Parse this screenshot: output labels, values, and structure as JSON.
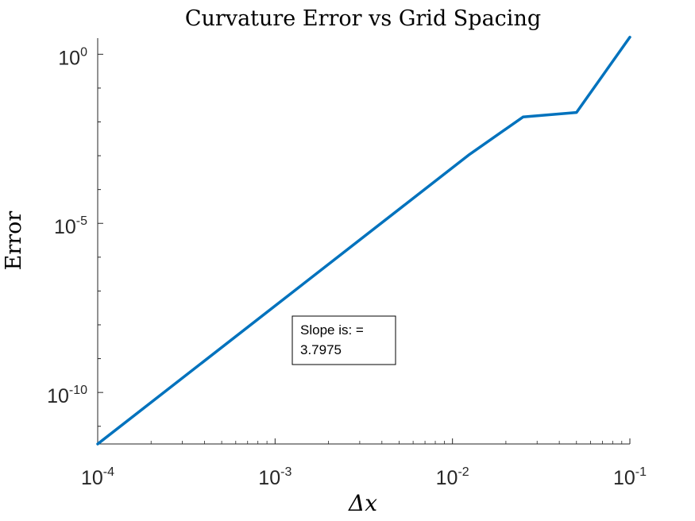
{
  "chart_data": {
    "type": "line",
    "title": "Curvature Error vs Grid Spacing",
    "xlabel": "Δx",
    "ylabel": "Error",
    "xscale": "log",
    "yscale": "log",
    "xlim": [
      0.0001,
      0.1
    ],
    "ylim": [
      3e-12,
      3
    ],
    "grid": false,
    "color": "#0072BD",
    "x_ticks": [
      {
        "base": "10",
        "exp": "-4"
      },
      {
        "base": "10",
        "exp": "-3"
      },
      {
        "base": "10",
        "exp": "-2"
      },
      {
        "base": "10",
        "exp": "-1"
      }
    ],
    "y_ticks": [
      {
        "base": "10",
        "exp": "-10"
      },
      {
        "base": "10",
        "exp": "-5"
      },
      {
        "base": "10",
        "exp": "0"
      }
    ],
    "series": [
      {
        "x": [
          0.0001,
          0.0125,
          0.025,
          0.05,
          0.1
        ],
        "y": [
          3e-12,
          0.0011,
          0.014,
          0.019,
          3.2
        ]
      }
    ],
    "annotation": {
      "line1": "Slope is: =",
      "line2": "3.7975"
    }
  }
}
